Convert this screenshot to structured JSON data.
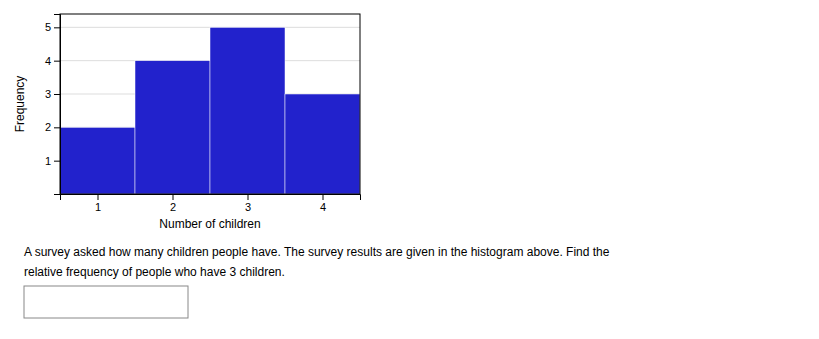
{
  "chart_data": {
    "type": "histogram",
    "bins": [
      0.5,
      1.5,
      2.5,
      3.5,
      4.5
    ],
    "values": [
      2,
      4,
      5,
      3
    ],
    "color": "#2222CC",
    "xlabel": "Number of children",
    "ylabel": "Frequency",
    "xlim": [
      0.5,
      4.5
    ],
    "ylim": [
      0,
      5.4
    ],
    "xticks": [
      1,
      2,
      3,
      4
    ],
    "yticks": [
      1,
      2,
      3,
      4,
      5
    ],
    "grid": true,
    "annotations": [
      "A survey asked how many children people have. The survey results are given in the histogram above. Find the",
      "relative frequency of people who have 3 children."
    ]
  }
}
